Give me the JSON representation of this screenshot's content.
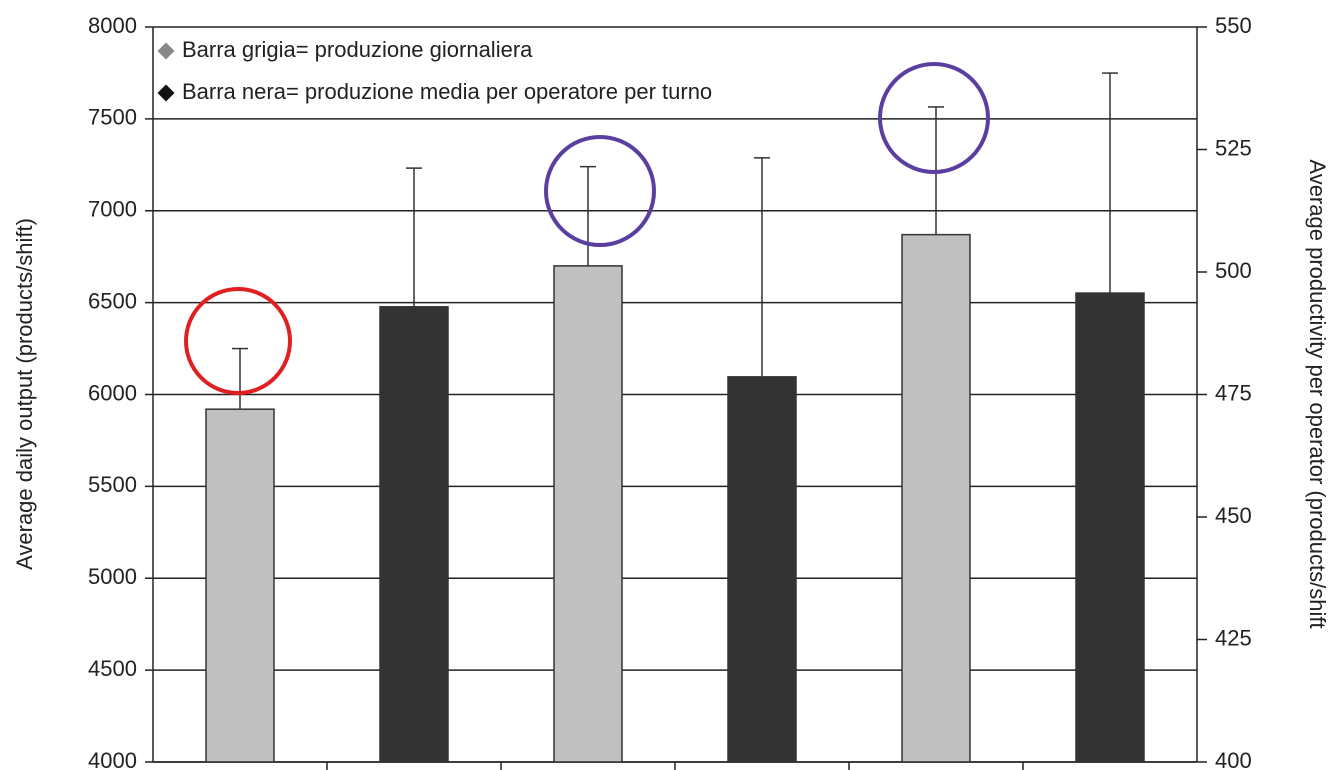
{
  "chart_data": {
    "type": "bar",
    "categories": [
      null,
      null,
      null,
      null,
      null,
      null
    ],
    "series": [
      {
        "name": "Barra grigia= produzione giornaliera",
        "color": "#c0c0c0",
        "marker_color": "#888888",
        "values": [
          5920,
          null,
          6700,
          null,
          6870,
          null
        ],
        "errors": [
          330,
          null,
          540,
          null,
          695,
          null
        ]
      },
      {
        "name": "Barra nera= produzione media per operatore per turno",
        "color": "#333333",
        "marker_color": "#111111",
        "axis": "y2",
        "values": [
          null,
          492.9,
          null,
          478.6,
          null,
          495.7
        ],
        "errors": [
          null,
          28.3,
          null,
          44.7,
          null,
          44.9
        ]
      }
    ],
    "ylabel": "Average daily output (products/shift)",
    "y2label": "Average productivity per operator (products/shift",
    "ylim": [
      4000,
      8000
    ],
    "yticks": [
      4000,
      4500,
      5000,
      5500,
      6000,
      6500,
      7000,
      7500,
      8000
    ],
    "y2lim": [
      400,
      550
    ],
    "y2ticks": [
      400,
      425,
      450,
      475,
      500,
      525,
      550
    ],
    "grid": true
  }
}
